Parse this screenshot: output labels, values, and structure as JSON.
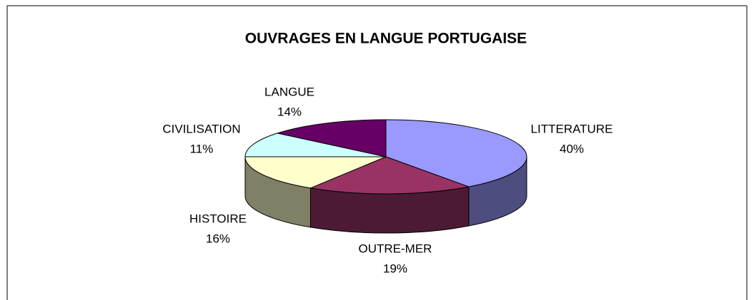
{
  "chart_data": {
    "type": "pie3d",
    "title": "OUVRAGES EN LANGUE PORTUGAISE",
    "categories": [
      "LITTERATURE",
      "OUTRE-MER",
      "HISTOIRE",
      "CIVILISATION",
      "LANGUE"
    ],
    "values": [
      40,
      19,
      16,
      11,
      14
    ],
    "value_labels": [
      "40%",
      "19%",
      "16%",
      "11%",
      "14%"
    ],
    "colors": [
      "#9999ff",
      "#993366",
      "#ffffcc",
      "#ccffff",
      "#660066"
    ]
  }
}
